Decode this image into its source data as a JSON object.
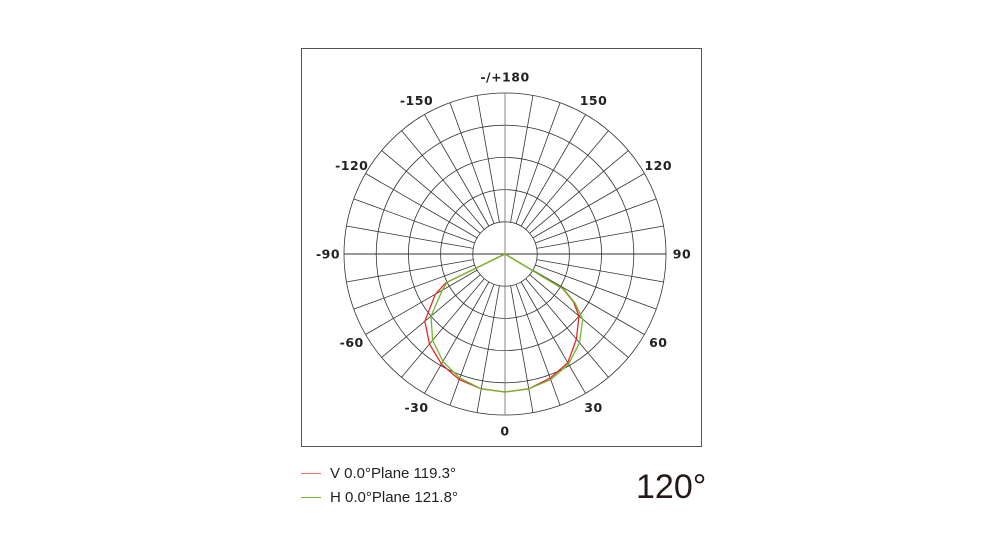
{
  "chart_data": {
    "type": "polar",
    "title": "",
    "angle_tick_labels": [
      {
        "angle": 180,
        "label": "-/+180"
      },
      {
        "angle": 150,
        "label": "150"
      },
      {
        "angle": -150,
        "label": "-150"
      },
      {
        "angle": 120,
        "label": "120"
      },
      {
        "angle": -120,
        "label": "-120"
      },
      {
        "angle": 90,
        "label": "90"
      },
      {
        "angle": -90,
        "label": "-90"
      },
      {
        "angle": 60,
        "label": "60"
      },
      {
        "angle": -60,
        "label": "-60"
      },
      {
        "angle": 30,
        "label": "30"
      },
      {
        "angle": -30,
        "label": "-30"
      },
      {
        "angle": 0,
        "label": "0"
      }
    ],
    "angle_grid_step": 10,
    "radial_rings": [
      0.2,
      0.4,
      0.6,
      0.8,
      1.0
    ],
    "radial_range": [
      0,
      1
    ],
    "grid": true,
    "legend_placement": "bottom-left",
    "series": [
      {
        "name": "V 0.0°Plane 119.3°",
        "color": "#e8262b",
        "angles": [
          -90,
          -70,
          -64,
          -60,
          -50,
          -40,
          -30,
          -20,
          -10,
          0,
          10,
          20,
          30,
          40,
          50,
          55,
          59,
          70,
          90
        ],
        "values": [
          0,
          0,
          0.41,
          0.5,
          0.65,
          0.73,
          0.79,
          0.83,
          0.85,
          0.857,
          0.85,
          0.82,
          0.78,
          0.69,
          0.6,
          0.52,
          0.42,
          0,
          0
        ]
      },
      {
        "name": "H 0.0°Plane 121.8°",
        "color": "#6cba2a",
        "angles": [
          -90,
          -70,
          -64,
          -60,
          -50,
          -40,
          -30,
          -20,
          -10,
          0,
          10,
          20,
          30,
          40,
          50,
          55,
          59,
          70,
          90
        ],
        "values": [
          0,
          0,
          0.4,
          0.45,
          0.6,
          0.7,
          0.77,
          0.82,
          0.85,
          0.857,
          0.85,
          0.83,
          0.79,
          0.72,
          0.63,
          0.53,
          0.43,
          0,
          0
        ]
      }
    ]
  },
  "beam_angle": "120°"
}
